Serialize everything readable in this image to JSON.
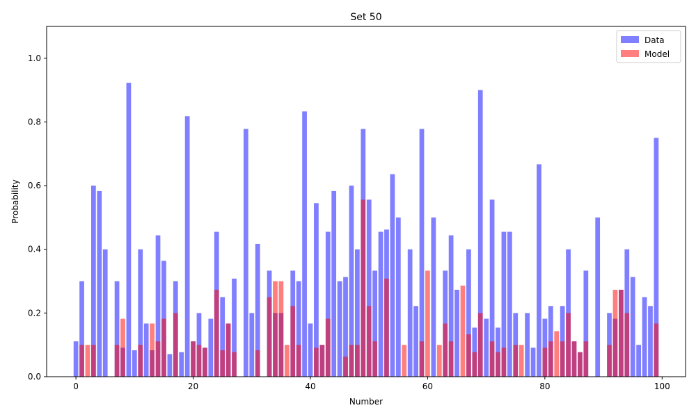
{
  "chart_data": {
    "type": "bar",
    "title": "Set 50",
    "xlabel": "Number",
    "ylabel": "Probability",
    "xlim": [
      -5,
      104
    ],
    "ylim": [
      0,
      1.1
    ],
    "xticks": [
      0,
      20,
      40,
      60,
      80,
      100
    ],
    "yticks": [
      0.0,
      0.2,
      0.4,
      0.6,
      0.8,
      1.0
    ],
    "ytick_labels": [
      "0.0",
      "0.2",
      "0.4",
      "0.6",
      "0.8",
      "1.0"
    ],
    "legend_position": "upper-right",
    "grid": false,
    "series": [
      {
        "name": "Data",
        "color": "#0000ff",
        "opacity": 0.5,
        "x": [
          0,
          1,
          3,
          4,
          5,
          7,
          8,
          9,
          10,
          11,
          12,
          13,
          14,
          15,
          16,
          17,
          18,
          19,
          20,
          21,
          22,
          23,
          24,
          25,
          26,
          27,
          29,
          30,
          31,
          33,
          34,
          35,
          37,
          38,
          39,
          40,
          41,
          42,
          43,
          44,
          45,
          46,
          47,
          48,
          49,
          50,
          51,
          52,
          53,
          54,
          55,
          57,
          58,
          59,
          61,
          63,
          64,
          65,
          67,
          68,
          69,
          70,
          71,
          72,
          73,
          74,
          75,
          77,
          78,
          79,
          80,
          81,
          83,
          84,
          85,
          86,
          87,
          89,
          91,
          92,
          93,
          94,
          95,
          96,
          97,
          98,
          99
        ],
        "values": [
          0.111,
          0.3,
          0.6,
          0.583,
          0.4,
          0.3,
          0.091,
          0.923,
          0.083,
          0.4,
          0.167,
          0.083,
          0.444,
          0.364,
          0.071,
          0.3,
          0.077,
          0.818,
          0.111,
          0.2,
          0.091,
          0.182,
          0.455,
          0.25,
          0.167,
          0.308,
          0.778,
          0.2,
          0.417,
          0.333,
          0.2,
          0.2,
          0.333,
          0.3,
          0.833,
          0.167,
          0.545,
          0.1,
          0.455,
          0.583,
          0.3,
          0.313,
          0.6,
          0.4,
          0.778,
          0.556,
          0.333,
          0.455,
          0.462,
          0.636,
          0.5,
          0.4,
          0.222,
          0.778,
          0.5,
          0.333,
          0.444,
          0.273,
          0.4,
          0.154,
          0.9,
          0.182,
          0.556,
          0.154,
          0.455,
          0.455,
          0.2,
          0.2,
          0.091,
          0.667,
          0.182,
          0.222,
          0.222,
          0.4,
          0.111,
          0.077,
          0.333,
          0.5,
          0.2,
          0.182,
          0.273,
          0.4,
          0.313,
          0.1,
          0.25,
          0.222,
          0.75
        ]
      },
      {
        "name": "Model",
        "color": "#ff0000",
        "opacity": 0.5,
        "x": [
          1,
          2,
          3,
          7,
          8,
          11,
          13,
          14,
          15,
          17,
          20,
          21,
          22,
          24,
          25,
          26,
          27,
          31,
          33,
          34,
          35,
          36,
          37,
          38,
          41,
          42,
          43,
          46,
          47,
          48,
          49,
          50,
          51,
          53,
          56,
          59,
          60,
          62,
          63,
          64,
          66,
          67,
          68,
          69,
          71,
          72,
          73,
          75,
          76,
          80,
          81,
          82,
          83,
          84,
          85,
          86,
          87,
          91,
          92,
          93,
          94,
          99
        ],
        "values": [
          0.1,
          0.1,
          0.1,
          0.1,
          0.182,
          0.1,
          0.167,
          0.111,
          0.182,
          0.2,
          0.111,
          0.1,
          0.091,
          0.273,
          0.083,
          0.167,
          0.077,
          0.083,
          0.25,
          0.3,
          0.3,
          0.1,
          0.222,
          0.1,
          0.091,
          0.1,
          0.182,
          0.063,
          0.1,
          0.1,
          0.556,
          0.222,
          0.111,
          0.308,
          0.1,
          0.111,
          0.333,
          0.1,
          0.167,
          0.111,
          0.286,
          0.133,
          0.077,
          0.2,
          0.111,
          0.077,
          0.091,
          0.1,
          0.1,
          0.091,
          0.111,
          0.143,
          0.111,
          0.2,
          0.111,
          0.077,
          0.111,
          0.1,
          0.273,
          0.273,
          0.2,
          0.167
        ]
      }
    ]
  }
}
